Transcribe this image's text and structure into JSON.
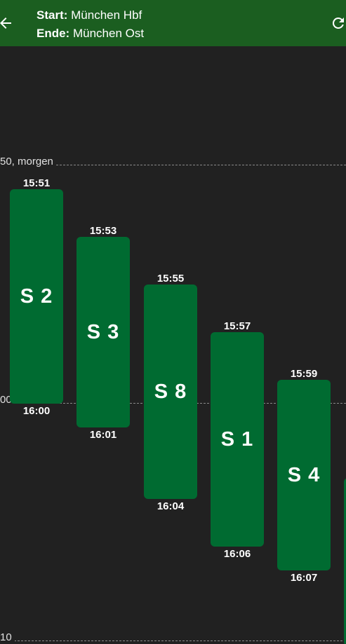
{
  "header": {
    "start_label": "Start:",
    "start_value": "München Hbf",
    "end_label": "Ende:",
    "end_value": "München Ost"
  },
  "icons": {
    "back": "arrow-left-icon",
    "refresh": "refresh-icon"
  },
  "colors": {
    "header_bg": "#1b5e20",
    "background": "#212121",
    "trip_bar": "#006b31"
  },
  "timeline": {
    "labels": [
      "50, morgen",
      "00",
      "10"
    ]
  },
  "trips": [
    {
      "line": "S 2",
      "departure": "15:51",
      "arrival": "16:00"
    },
    {
      "line": "S 3",
      "departure": "15:53",
      "arrival": "16:01"
    },
    {
      "line": "S 8",
      "departure": "15:55",
      "arrival": "16:04"
    },
    {
      "line": "S 1",
      "departure": "15:57",
      "arrival": "16:06"
    },
    {
      "line": "S 4",
      "departure": "15:59",
      "arrival": "16:07"
    }
  ]
}
